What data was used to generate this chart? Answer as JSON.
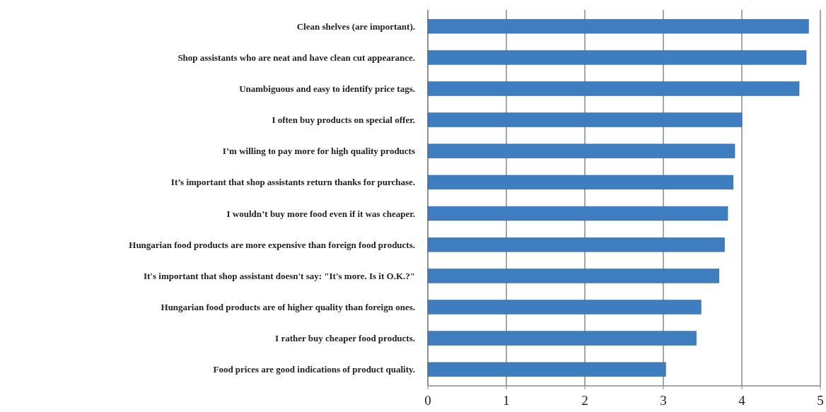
{
  "chart_data": {
    "type": "bar",
    "orientation": "horizontal",
    "categories": [
      "Clean shelves (are important).",
      "Shop assistants who are neat and have clean cut appearance.",
      "Unambiguous and easy to identify price tags.",
      "I often buy products on special offer.",
      "I’m willing to pay more for high quality products",
      "It’s important that shop assistants return thanks for purchase.",
      "I wouldn’t buy more food even if it was cheaper.",
      "Hungarian food products are more expensive than foreign food products.",
      "It's important that shop assistant doesn't say: \"It's more. Is it O.K.?\"",
      "Hungarian food products are of higher quality than foreign ones.",
      "I rather buy cheaper food products.",
      "Food prices are good indications of product quality."
    ],
    "values": [
      4.85,
      4.82,
      4.73,
      4.0,
      3.91,
      3.89,
      3.82,
      3.78,
      3.71,
      3.48,
      3.42,
      3.03
    ],
    "color": "#3f7dc1",
    "xlim": [
      0,
      5
    ],
    "xticks": [
      0,
      1,
      2,
      3,
      4,
      5
    ],
    "grid": "x"
  }
}
